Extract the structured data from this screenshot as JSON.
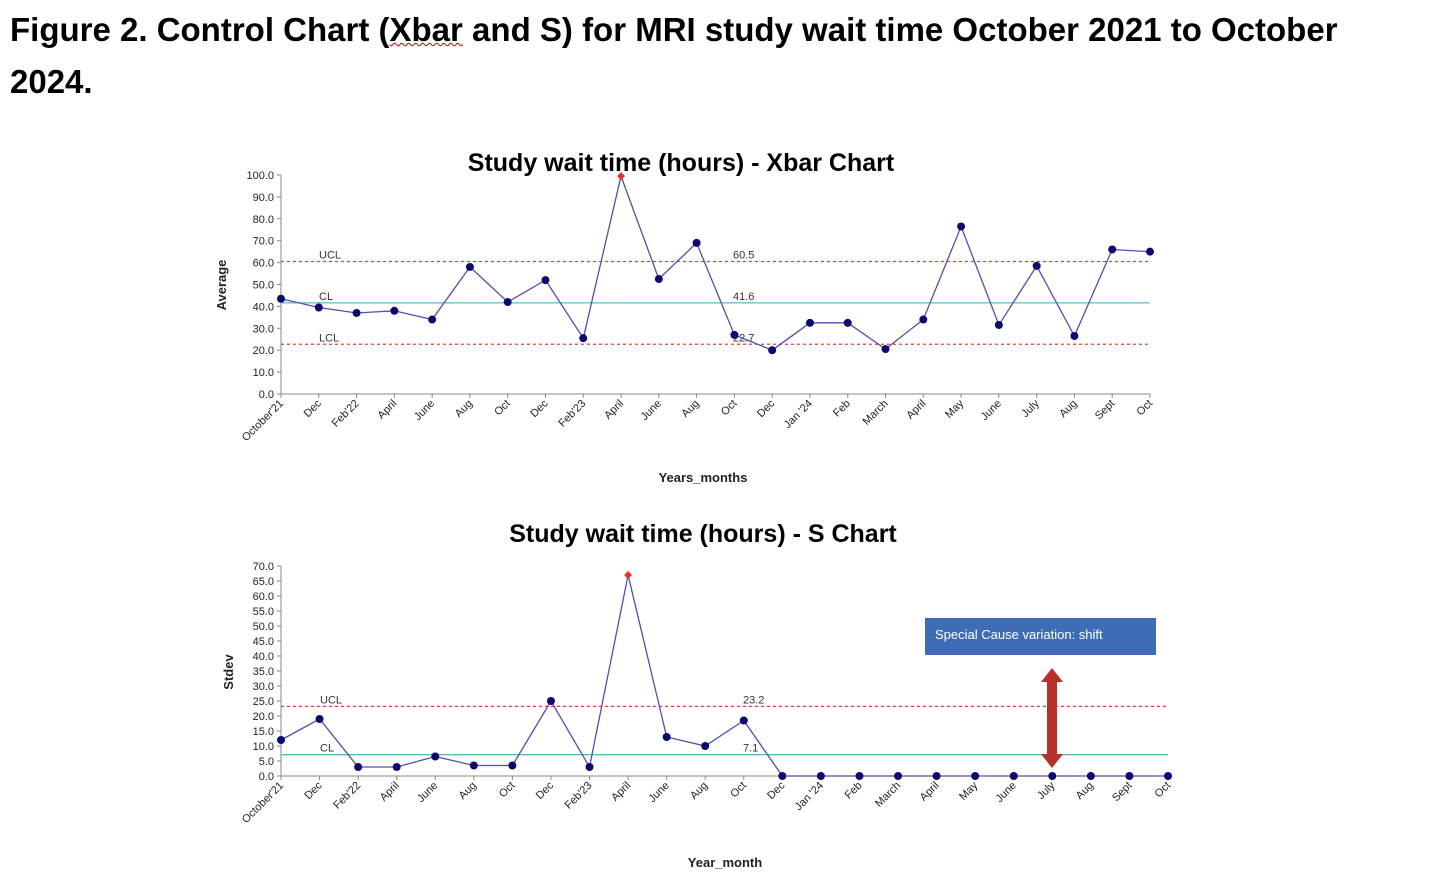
{
  "figure": {
    "caption_prefix": "Figure 2",
    "caption_dot": ". Control Chart (",
    "caption_squiggle": "Xbar",
    "caption_rest": " and S) for MRI study wait time October 2021 to October 2024."
  },
  "colors": {
    "series_line": "#4f4fb0",
    "marker": "#0a0a6e",
    "outlier": "#e8302a",
    "control_limit": "#e0403a",
    "center_line": "#5bbcc0",
    "annotation_box": "#3f6db5",
    "arrow": "#b8302a"
  },
  "chart_data": [
    {
      "type": "line",
      "title": "Study wait time (hours) - Xbar Chart",
      "xlabel": "Years_months",
      "ylabel": "Average",
      "ylim": [
        0,
        100
      ],
      "yticks": [
        "0.0",
        "10.0",
        "20.0",
        "30.0",
        "40.0",
        "50.0",
        "60.0",
        "70.0",
        "80.0",
        "90.0",
        "100.0"
      ],
      "categories": [
        "October'21",
        "Dec",
        "Feb'22",
        "April",
        "June",
        "Aug",
        "Oct",
        "Dec",
        "Feb'23",
        "April",
        "June",
        "Aug",
        "Oct",
        "Dec",
        "Jan '24",
        "Feb",
        "March",
        "April",
        "May",
        "June",
        "July",
        "Aug",
        "Sept",
        "Oct"
      ],
      "values": [
        43.5,
        39.5,
        37,
        38,
        34,
        58,
        42,
        52,
        25.5,
        99.5,
        52.5,
        69,
        27,
        20,
        32.5,
        32.5,
        20.5,
        34,
        76.5,
        31.5,
        58.5,
        26.5,
        66,
        65
      ],
      "outlier_indices": [
        9
      ],
      "control_limits": {
        "ucl": 60.5,
        "cl": 41.6,
        "lcl": 22.7,
        "ucl_label": "UCL",
        "cl_label": "CL",
        "lcl_label": "LCL",
        "ucl_text": "60.5",
        "cl_text": "41.6",
        "lcl_text": "22.7"
      },
      "grid": false,
      "legend": "none"
    },
    {
      "type": "line",
      "title": "Study wait time (hours) - S Chart",
      "xlabel": "Year_month",
      "ylabel": "Stdev",
      "ylim": [
        0,
        70
      ],
      "yticks": [
        "0.0",
        "5.0",
        "10.0",
        "15.0",
        "20.0",
        "25.0",
        "30.0",
        "35.0",
        "40.0",
        "45.0",
        "50.0",
        "55.0",
        "60.0",
        "65.0",
        "70.0"
      ],
      "categories": [
        "October'21",
        "Dec",
        "Feb'22",
        "April",
        "June",
        "Aug",
        "Oct",
        "Dec",
        "Feb'23",
        "April",
        "June",
        "Aug",
        "Oct",
        "Dec",
        "Jan '24",
        "Feb",
        "March",
        "April",
        "May",
        "June",
        "July",
        "Aug",
        "Sept",
        "Oct"
      ],
      "values": [
        12,
        19,
        3,
        3,
        6.5,
        3.5,
        3.5,
        25,
        3,
        67,
        13,
        10,
        18.5,
        0,
        0,
        0,
        0,
        0,
        0,
        0,
        0,
        0,
        0,
        0
      ],
      "outlier_indices": [
        9
      ],
      "control_limits": {
        "ucl": 23.2,
        "cl": 7.1,
        "ucl_label": "UCL",
        "cl_label": "CL",
        "ucl_text": "23.2",
        "cl_text": "7.1"
      },
      "annotation": "Special Cause variation: shift",
      "grid": false,
      "legend": "none"
    }
  ]
}
